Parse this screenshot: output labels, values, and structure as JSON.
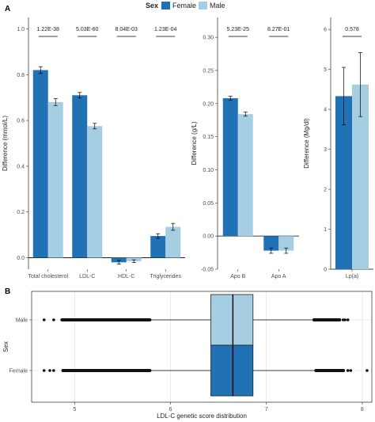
{
  "colors": {
    "female": "#2171b5",
    "male": "#a6cee3",
    "axis": "#000000",
    "grid": "#d9d9d9"
  },
  "legend": {
    "title": "Sex",
    "items": [
      "Female",
      "Male"
    ],
    "placement": "top"
  },
  "panels": {
    "a": "A",
    "b": "B"
  },
  "chart_data": [
    {
      "type": "bar",
      "panel": "A",
      "ylabel": "Difference (mmol/L)",
      "ylim": [
        -0.05,
        1.05
      ],
      "yticks": [
        0.0,
        0.2,
        0.4,
        0.6,
        0.8,
        1.0
      ],
      "ytick_labels": [
        "0.0",
        "0.2",
        "0.4",
        "0.6",
        "0.8",
        "1.0"
      ],
      "categories": [
        "Total cholesterol",
        "LDL-C",
        "HDL-C",
        "Triglycerides"
      ],
      "series": [
        {
          "name": "Female",
          "values": [
            0.82,
            0.71,
            -0.02,
            0.095
          ],
          "errors": [
            0.015,
            0.012,
            0.008,
            0.01
          ]
        },
        {
          "name": "Male",
          "values": [
            0.68,
            0.575,
            -0.015,
            0.135
          ],
          "errors": [
            0.015,
            0.012,
            0.006,
            0.015
          ]
        }
      ],
      "p_values": [
        "1.22E-38",
        "5.03E-60",
        "8.04E-03",
        "1.23E-04"
      ]
    },
    {
      "type": "bar",
      "panel": "A",
      "ylabel": "Difference (g/L)",
      "ylim": [
        -0.05,
        0.33
      ],
      "yticks": [
        -0.05,
        0.0,
        0.05,
        0.1,
        0.15,
        0.2,
        0.25,
        0.3
      ],
      "ytick_labels": [
        "-0.05",
        "0.00",
        "0.05",
        "0.10",
        "0.15",
        "0.20",
        "0.25",
        "0.30"
      ],
      "categories": [
        "Apo B",
        "Apo A"
      ],
      "series": [
        {
          "name": "Female",
          "values": [
            0.208,
            -0.022
          ],
          "errors": [
            0.003,
            0.004
          ]
        },
        {
          "name": "Male",
          "values": [
            0.184,
            -0.022
          ],
          "errors": [
            0.003,
            0.004
          ]
        }
      ],
      "p_values": [
        "5.23E-25",
        "8.27E-01"
      ]
    },
    {
      "type": "bar",
      "panel": "A",
      "ylabel": "Difference (Mg/dl)",
      "ylim": [
        0,
        6.3
      ],
      "yticks": [
        0,
        1,
        2,
        3,
        4,
        5,
        6
      ],
      "ytick_labels": [
        "0",
        "1",
        "2",
        "3",
        "4",
        "5",
        "6"
      ],
      "categories": [
        "Lp(a)"
      ],
      "series": [
        {
          "name": "Female",
          "values": [
            4.33
          ],
          "errors": [
            0.72
          ]
        },
        {
          "name": "Male",
          "values": [
            4.62
          ],
          "errors": [
            0.8
          ]
        }
      ],
      "p_values": [
        "0.578"
      ]
    },
    {
      "type": "box",
      "panel": "B",
      "xlabel": "LDL-C genetic score distribution",
      "ylabel": "Sex",
      "xlim": [
        4.55,
        8.1
      ],
      "xticks": [
        5,
        6,
        7,
        8
      ],
      "xtick_labels": [
        "5",
        "6",
        "7",
        "8"
      ],
      "grid": true,
      "categories": [
        "Male",
        "Female"
      ],
      "boxes": [
        {
          "name": "Male",
          "q1": 6.42,
          "median": 6.65,
          "q3": 6.86,
          "whisker_low": 5.8,
          "whisker_high": 7.48,
          "outlier_band_low": [
            4.85,
            5.8
          ],
          "outlier_band_high": [
            7.48,
            7.78
          ],
          "outliers_sparse": [
            4.68,
            4.78,
            7.8,
            7.82,
            7.85
          ]
        },
        {
          "name": "Female",
          "q1": 6.42,
          "median": 6.65,
          "q3": 6.86,
          "whisker_low": 5.8,
          "whisker_high": 7.5,
          "outlier_band_low": [
            4.86,
            5.8
          ],
          "outlier_band_high": [
            7.5,
            7.82
          ],
          "outliers_sparse": [
            4.68,
            4.74,
            4.78,
            7.85,
            7.88,
            8.05
          ]
        }
      ]
    }
  ]
}
